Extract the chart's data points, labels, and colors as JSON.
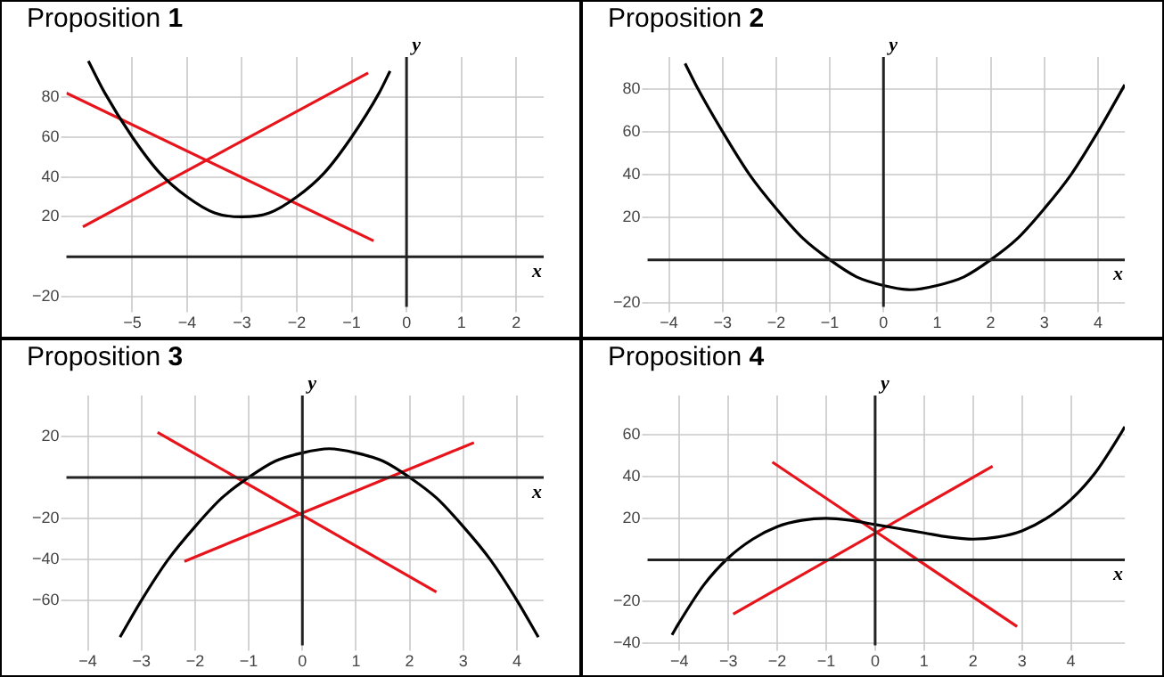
{
  "chart_data": [
    {
      "type": "line",
      "title": "Proposition 1",
      "xlabel": "x",
      "ylabel": "y",
      "xlim": [
        -6.2,
        2.5
      ],
      "ylim": [
        -25,
        100
      ],
      "xticks": [
        -5,
        -4,
        -3,
        -2,
        -1,
        0,
        1,
        2
      ],
      "yticks": [
        -20,
        20,
        40,
        60,
        80
      ],
      "grid": true,
      "legend": false,
      "marker": "none",
      "line_style": "solid",
      "series": [
        {
          "color": "#000000",
          "x": [
            -5.8,
            -5.5,
            -5,
            -4.5,
            -4,
            -3.5,
            -3,
            -2.5,
            -2,
            -1.5,
            -1,
            -0.5,
            -0.3
          ],
          "values": [
            98,
            82,
            60,
            42,
            30,
            22,
            20,
            22,
            30,
            42,
            60,
            82,
            93
          ]
        },
        {
          "color": "#e8141c",
          "x": [
            -5.9,
            -0.7
          ],
          "values": [
            15,
            92
          ]
        },
        {
          "color": "#e8141c",
          "x": [
            -6.2,
            -0.6
          ],
          "values": [
            82,
            8
          ]
        }
      ]
    },
    {
      "type": "line",
      "title": "Proposition 2",
      "xlabel": "x",
      "ylabel": "y",
      "xlim": [
        -4.4,
        4.5
      ],
      "ylim": [
        -22,
        95
      ],
      "xticks": [
        -4,
        -3,
        -2,
        -1,
        0,
        1,
        2,
        3,
        4
      ],
      "yticks": [
        -20,
        20,
        40,
        60,
        80
      ],
      "grid": true,
      "legend": false,
      "marker": "none",
      "line_style": "solid",
      "series": [
        {
          "color": "#000000",
          "x": [
            -3.7,
            -3.5,
            -3,
            -2.5,
            -2,
            -1.5,
            -1,
            -0.5,
            0,
            0.5,
            1,
            1.5,
            2,
            2.5,
            3,
            3.5,
            4,
            4.5
          ],
          "values": [
            92,
            82,
            60,
            40,
            24,
            10,
            0,
            -8,
            -12,
            -14,
            -12,
            -8,
            0,
            10,
            24,
            40,
            60,
            82
          ]
        }
      ]
    },
    {
      "type": "line",
      "title": "Proposition 3",
      "xlabel": "x",
      "ylabel": "y",
      "xlim": [
        -4.4,
        4.5
      ],
      "ylim": [
        -82,
        40
      ],
      "xticks": [
        -4,
        -3,
        -2,
        -1,
        0,
        1,
        2,
        3,
        4
      ],
      "yticks": [
        -60,
        -40,
        -20,
        20
      ],
      "grid": true,
      "legend": false,
      "marker": "none",
      "line_style": "solid",
      "series": [
        {
          "color": "#000000",
          "x": [
            -3.4,
            -3,
            -2.5,
            -2,
            -1.5,
            -1,
            -0.5,
            0,
            0.5,
            1,
            1.5,
            2,
            2.5,
            3,
            3.5,
            4,
            4.4
          ],
          "values": [
            -78,
            -60,
            -40,
            -24,
            -10,
            0,
            8,
            12,
            14,
            12,
            8,
            0,
            -10,
            -24,
            -40,
            -60,
            -78
          ]
        },
        {
          "color": "#e8141c",
          "x": [
            -2.7,
            2.5
          ],
          "values": [
            22,
            -56
          ]
        },
        {
          "color": "#e8141c",
          "x": [
            -2.2,
            3.2
          ],
          "values": [
            -41,
            17
          ]
        }
      ]
    },
    {
      "type": "line",
      "title": "Proposition 4",
      "xlabel": "x",
      "ylabel": "y",
      "xlim": [
        -4.65,
        5.1
      ],
      "ylim": [
        -41,
        79
      ],
      "xticks": [
        -4,
        -3,
        -2,
        -1,
        0,
        1,
        2,
        3,
        4
      ],
      "yticks": [
        -40,
        -20,
        20,
        40,
        60
      ],
      "grid": true,
      "legend": false,
      "marker": "none",
      "line_style": "solid",
      "series": [
        {
          "color": "#000000",
          "x": [
            -4.15,
            -4,
            -3.5,
            -3,
            -2.5,
            -2,
            -1.5,
            -1,
            -0.5,
            0,
            0.5,
            1,
            1.5,
            2,
            2.5,
            3,
            3.5,
            4,
            4.5,
            5,
            5.1
          ],
          "values": [
            -36,
            -30,
            -12,
            1,
            10,
            16,
            19,
            20,
            19,
            17,
            15,
            13,
            11,
            10,
            11,
            14,
            20,
            29,
            42,
            60,
            64
          ]
        },
        {
          "color": "#e8141c",
          "x": [
            -2.1,
            2.9
          ],
          "values": [
            47,
            -32
          ]
        },
        {
          "color": "#e8141c",
          "x": [
            -2.9,
            2.4
          ],
          "values": [
            -26,
            45
          ]
        }
      ]
    }
  ]
}
